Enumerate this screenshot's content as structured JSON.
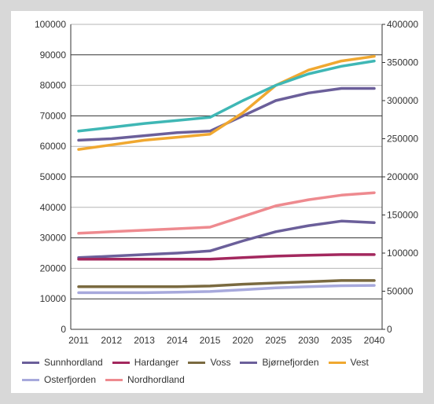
{
  "chart_data": {
    "type": "line",
    "title": "",
    "xlabel": "",
    "ylabel": "",
    "categories": [
      "2011",
      "2012",
      "2013",
      "2014",
      "2015",
      "2020",
      "2025",
      "2030",
      "2035",
      "2040"
    ],
    "y_left": {
      "range": [
        0,
        100000
      ],
      "ticks": [
        "0",
        "10000",
        "20000",
        "30000",
        "40000",
        "50000",
        "60000",
        "70000",
        "80000",
        "90000",
        "100000"
      ]
    },
    "y_right": {
      "range": [
        0,
        400000
      ],
      "ticks": [
        "0",
        "50000",
        "100000",
        "150000",
        "200000",
        "250000",
        "300000",
        "350000",
        "400000"
      ]
    },
    "grid": true,
    "legend_position": "bottom",
    "series": [
      {
        "name": "Sunnhordland",
        "axis": "left",
        "color": "#6b5f9a",
        "values": [
          23500,
          24000,
          24500,
          25000,
          25700,
          29000,
          32000,
          34000,
          35500,
          35000
        ]
      },
      {
        "name": "Hardanger",
        "axis": "left",
        "color": "#a3285e",
        "values": [
          23000,
          23000,
          23000,
          23000,
          23000,
          23500,
          24000,
          24300,
          24500,
          24500
        ]
      },
      {
        "name": "Voss",
        "axis": "left",
        "color": "#7a6a40",
        "values": [
          14000,
          14000,
          14000,
          14000,
          14200,
          14800,
          15200,
          15600,
          16000,
          16000
        ]
      },
      {
        "name": "Bjørnefjorden",
        "axis": "left",
        "color": "#6b5f9a",
        "values": [
          62000,
          62500,
          63500,
          64500,
          65000,
          70000,
          75000,
          77500,
          79000,
          79000
        ]
      },
      {
        "name": "Vest",
        "axis": "left",
        "color": "#f0a830",
        "values": [
          59000,
          60500,
          62000,
          63000,
          64000,
          71000,
          80000,
          85000,
          88000,
          89500
        ]
      },
      {
        "name": "Osterfjorden",
        "axis": "left",
        "color": "#a7a9dc",
        "values": [
          12000,
          12000,
          12000,
          12200,
          12400,
          13000,
          13600,
          14000,
          14300,
          14400
        ]
      },
      {
        "name": "Nordhordland",
        "axis": "left",
        "color": "#ee8a8f",
        "values": [
          31500,
          32000,
          32500,
          33000,
          33500,
          37000,
          40500,
          42500,
          44000,
          44800
        ]
      },
      {
        "name": "",
        "axis": "right",
        "color": "#3fb7b5",
        "show_in_legend": false,
        "values": [
          260000,
          265000,
          270000,
          274000,
          278000,
          300000,
          320000,
          335000,
          345000,
          352000
        ]
      }
    ]
  }
}
